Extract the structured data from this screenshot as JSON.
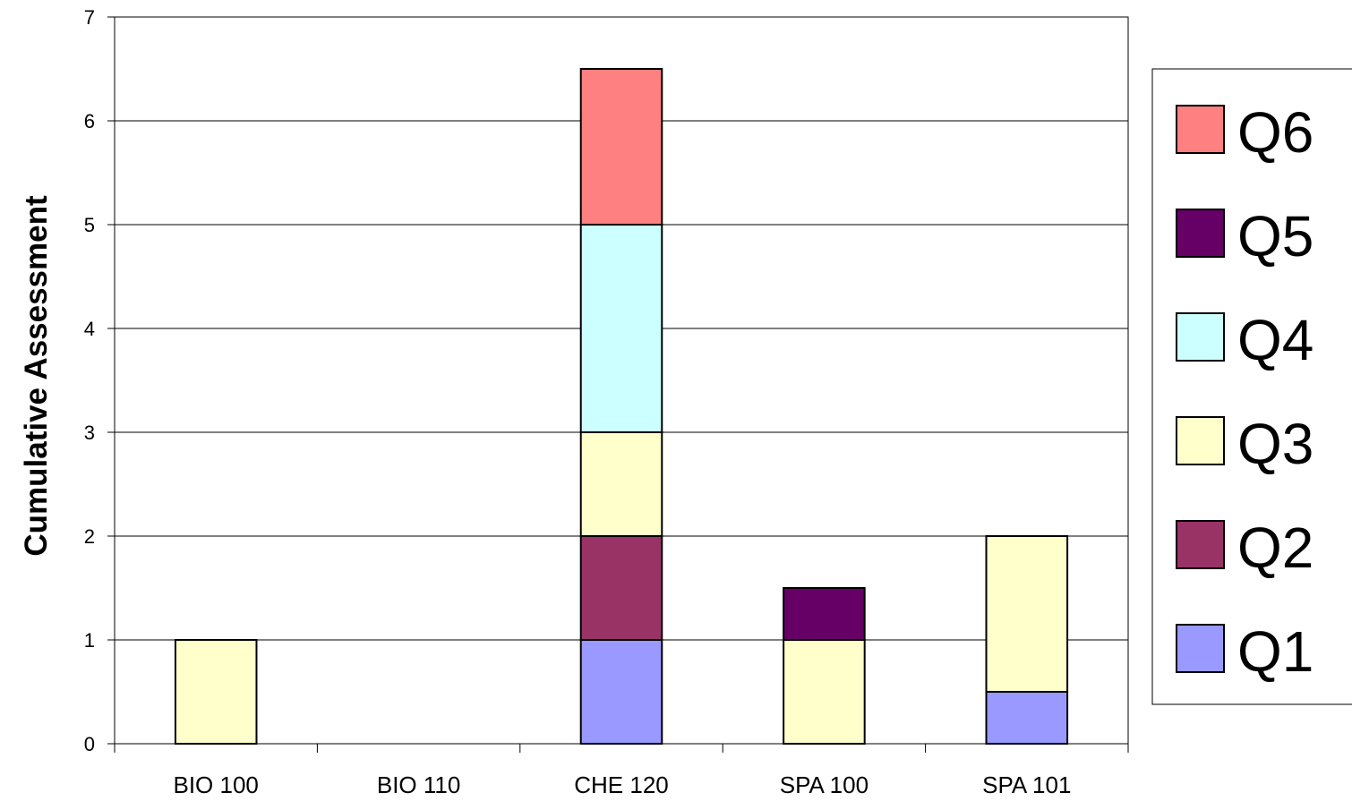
{
  "chart_data": {
    "type": "bar",
    "stacked": true,
    "title": "",
    "xlabel": "",
    "ylabel": "Cumulative Assessment",
    "ylim": [
      0,
      7
    ],
    "yticks": [
      "0",
      "1",
      "2",
      "3",
      "4",
      "5",
      "6",
      "7"
    ],
    "grid": true,
    "legend_position": "right",
    "categories": [
      "BIO 100",
      "BIO 110",
      "CHE 120",
      "SPA 100",
      "SPA 101"
    ],
    "series": [
      {
        "name": "Q1",
        "color": "#9999ff",
        "values": [
          0,
          0,
          1,
          0,
          0.5
        ]
      },
      {
        "name": "Q2",
        "color": "#993366",
        "values": [
          0,
          0,
          1,
          0,
          0
        ]
      },
      {
        "name": "Q3",
        "color": "#ffffcc",
        "values": [
          1,
          0,
          1,
          1,
          1.5
        ]
      },
      {
        "name": "Q4",
        "color": "#ccffff",
        "values": [
          0,
          0,
          2,
          0,
          0
        ]
      },
      {
        "name": "Q5",
        "color": "#660066",
        "values": [
          0,
          0,
          0,
          0.5,
          0
        ]
      },
      {
        "name": "Q6",
        "color": "#ff8080",
        "values": [
          0,
          0,
          1.5,
          0,
          0
        ]
      }
    ]
  }
}
